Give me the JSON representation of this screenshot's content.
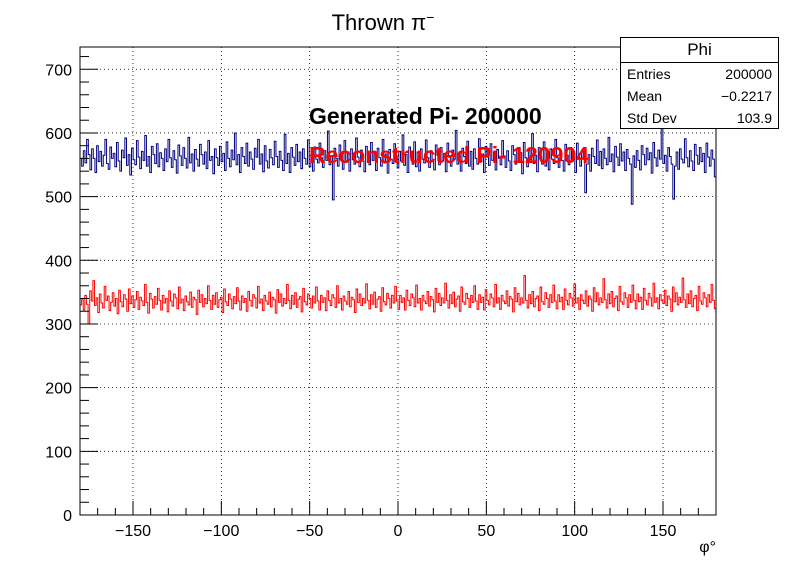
{
  "chart_data": {
    "type": "histogram",
    "title_base": "Thrown π",
    "title_sup": "−",
    "xlabel": "φ°",
    "ylabel": "",
    "xlim": [
      -180,
      180
    ],
    "ylim": [
      0,
      735
    ],
    "grid": true,
    "x_ticks": [
      -150,
      -100,
      -50,
      0,
      50,
      100,
      150
    ],
    "x_tick_labels": [
      "−150",
      "−100",
      "−50",
      "0",
      "50",
      "100",
      "150"
    ],
    "y_ticks": [
      0,
      100,
      200,
      300,
      400,
      500,
      600,
      700
    ],
    "y_tick_labels": [
      "0",
      "100",
      "200",
      "300",
      "400",
      "500",
      "600",
      "700"
    ],
    "bin_width": 1,
    "series": [
      {
        "name": "Generated Pi- 200000",
        "color": "#00007f",
        "values": [
          560,
          548,
          572,
          553,
          590,
          566,
          542,
          575,
          560,
          538,
          580,
          555,
          571,
          548,
          565,
          590,
          552,
          543,
          578,
          560,
          568,
          547,
          585,
          556,
          540,
          573,
          561,
          592,
          549,
          566,
          534,
          576,
          558,
          550,
          588,
          562,
          544,
          571,
          557,
          596,
          548,
          563,
          538,
          579,
          566,
          552,
          583,
          547,
          569,
          560,
          541,
          575,
          555,
          590,
          561,
          546,
          572,
          558,
          537,
          581,
          564,
          549,
          577,
          560,
          545,
          593,
          553,
          567,
          540,
          574,
          559,
          548,
          582,
          566,
          551,
          570,
          544,
          588,
          557,
          563,
          536,
          575,
          561,
          549,
          579,
          555,
          568,
          541,
          586,
          560,
          547,
          573,
          558,
          600,
          550,
          566,
          538,
          577,
          563,
          552,
          584,
          548,
          570,
          559,
          543,
          576,
          562,
          590,
          551,
          567,
          539,
          580,
          556,
          545,
          574,
          561,
          550,
          587,
          563,
          546,
          571,
          557,
          541,
          598,
          552,
          568,
          538,
          577,
          562,
          549,
          582,
          555,
          570,
          544,
          575,
          560,
          551,
          589,
          547,
          566,
          540,
          578,
          559,
          553,
          584,
          561,
          546,
          572,
          557,
          603,
          550,
          564,
          495,
          576,
          560,
          548,
          581,
          566,
          543,
          588,
          554,
          570,
          540,
          575,
          558,
          551,
          592,
          562,
          547,
          573,
          556,
          539,
          579,
          565,
          550,
          585,
          557,
          569,
          541,
          576,
          561,
          548,
          590,
          553,
          567,
          537,
          574,
          559,
          552,
          583,
          563,
          545,
          571,
          556,
          597,
          549,
          566,
          538,
          578,
          562,
          551,
          586,
          547,
          570,
          540,
          575,
          559,
          553,
          589,
          561,
          546,
          572,
          557,
          542,
          581,
          565,
          550,
          577,
          556,
          568,
          539,
          584,
          562,
          548,
          573,
          559,
          604,
          551,
          566,
          540,
          576,
          563,
          552,
          587,
          548,
          571,
          543,
          575,
          560,
          551,
          591,
          555,
          567,
          538,
          579,
          562,
          549,
          583,
          557,
          570,
          542,
          574,
          560,
          550,
          588,
          564,
          546,
          572,
          556,
          541,
          580,
          566,
          551,
          576,
          557,
          569,
          536,
          585,
          561,
          547,
          573,
          558,
          599,
          552,
          565,
          539,
          577,
          563,
          551,
          586,
          548,
          570,
          542,
          575,
          559,
          552,
          590,
          561,
          546,
          572,
          557,
          540,
          582,
          565,
          550,
          577,
          555,
          568,
          538,
          584,
          562,
          548,
          573,
          560,
          506,
          551,
          566,
          540,
          576,
          563,
          552,
          589,
          549,
          571,
          544,
          575,
          560,
          550,
          593,
          555,
          567,
          539,
          579,
          562,
          549,
          583,
          556,
          570,
          541,
          574,
          560,
          551,
          488,
          564,
          546,
          572,
          557,
          542,
          580,
          566,
          550,
          576,
          558,
          569,
          537,
          585,
          561,
          548,
          573,
          559,
          608,
          552,
          565,
          540,
          577,
          563,
          551,
          496,
          548,
          570,
          543,
          575,
          559,
          553,
          591,
          561,
          547,
          572,
          556,
          541,
          582,
          565,
          551,
          577,
          555,
          568,
          538,
          584,
          562,
          548,
          573,
          559,
          531
        ]
      },
      {
        "name": "Reconstructed Pi- 120904",
        "color": "#ff0000",
        "values": [
          330,
          338,
          322,
          345,
          331,
          300,
          352,
          336,
          368,
          329,
          341,
          318,
          347,
          333,
          325,
          359,
          337,
          344,
          321,
          334,
          349,
          328,
          340,
          316,
          353,
          335,
          327,
          346,
          339,
          320,
          355,
          332,
          344,
          326,
          338,
          351,
          323,
          342,
          336,
          329,
          362,
          334,
          317,
          348,
          339,
          325,
          343,
          331,
          356,
          337,
          322,
          345,
          333,
          340,
          319,
          352,
          336,
          328,
          347,
          341,
          324,
          358,
          333,
          339,
          321,
          344,
          335,
          330,
          350,
          326,
          342,
          338,
          315,
          353,
          334,
          346,
          327,
          340,
          332,
          360,
          337,
          323,
          345,
          331,
          349,
          326,
          338,
          342,
          318,
          355,
          335,
          329,
          347,
          339,
          324,
          343,
          332,
          357,
          336,
          322,
          344,
          334,
          340,
          320,
          351,
          337,
          328,
          346,
          341,
          325,
          359,
          333,
          339,
          321,
          345,
          336,
          331,
          350,
          327,
          342,
          338,
          317,
          354,
          334,
          347,
          328,
          340,
          332,
          362,
          337,
          324,
          345,
          331,
          349,
          326,
          339,
          343,
          319,
          356,
          335,
          330,
          347,
          340,
          325,
          344,
          333,
          358,
          336,
          322,
          345,
          334,
          341,
          321,
          352,
          337,
          329,
          346,
          341,
          326,
          360,
          333,
          340,
          322,
          344,
          336,
          331,
          351,
          327,
          342,
          338,
          318,
          355,
          334,
          347,
          329,
          340,
          333,
          363,
          337,
          324,
          346,
          331,
          350,
          326,
          339,
          343,
          320,
          357,
          335,
          330,
          348,
          340,
          325,
          345,
          333,
          359,
          336,
          323,
          345,
          334,
          341,
          322,
          353,
          337,
          329,
          347,
          341,
          327,
          361,
          333,
          340,
          322,
          345,
          336,
          332,
          351,
          328,
          343,
          338,
          319,
          356,
          334,
          348,
          329,
          341,
          333,
          364,
          337,
          325,
          346,
          332,
          350,
          327,
          339,
          344,
          320,
          358,
          335,
          331,
          348,
          340,
          326,
          345,
          334,
          360,
          336,
          323,
          346,
          334,
          342,
          322,
          354,
          337,
          330,
          347,
          341,
          327,
          362,
          333,
          341,
          323,
          345,
          336,
          332,
          352,
          328,
          343,
          339,
          319,
          357,
          335,
          348,
          330,
          341,
          333,
          376,
          337,
          325,
          346,
          332,
          351,
          327,
          340,
          344,
          321,
          358,
          335,
          331,
          349,
          340,
          326,
          346,
          334,
          361,
          336,
          324,
          346,
          335,
          342,
          323,
          355,
          337,
          330,
          348,
          341,
          328,
          363,
          333,
          341,
          323,
          346,
          337,
          332,
          352,
          328,
          344,
          339,
          320,
          357,
          335,
          349,
          330,
          341,
          334,
          371,
          338,
          325,
          347,
          332,
          351,
          327,
          340,
          344,
          321,
          359,
          335,
          331,
          349,
          341,
          326,
          346,
          334,
          361,
          337,
          324,
          347,
          335,
          342,
          323,
          356,
          337,
          330,
          348,
          341,
          328,
          364,
          334,
          341,
          324,
          346,
          337,
          332,
          353,
          329,
          344,
          339,
          320,
          358,
          335,
          349,
          330,
          342,
          334,
          372,
          338,
          326,
          347,
          332,
          352,
          327,
          340,
          345,
          321,
          359,
          336,
          331,
          349,
          341,
          327,
          346,
          334,
          362,
          337,
          324
        ]
      }
    ],
    "annotations": [
      {
        "text": "Generated Pi- 200000",
        "color": "#000000"
      },
      {
        "text": "Reconstructed Pi- 120904",
        "color": "#ff0000"
      }
    ]
  },
  "stats": {
    "title": "Phi",
    "rows": [
      {
        "label": "Entries",
        "value": "200000"
      },
      {
        "label": "Mean",
        "value": "−0.2217"
      },
      {
        "label": "Std Dev",
        "value": "103.9"
      }
    ]
  }
}
